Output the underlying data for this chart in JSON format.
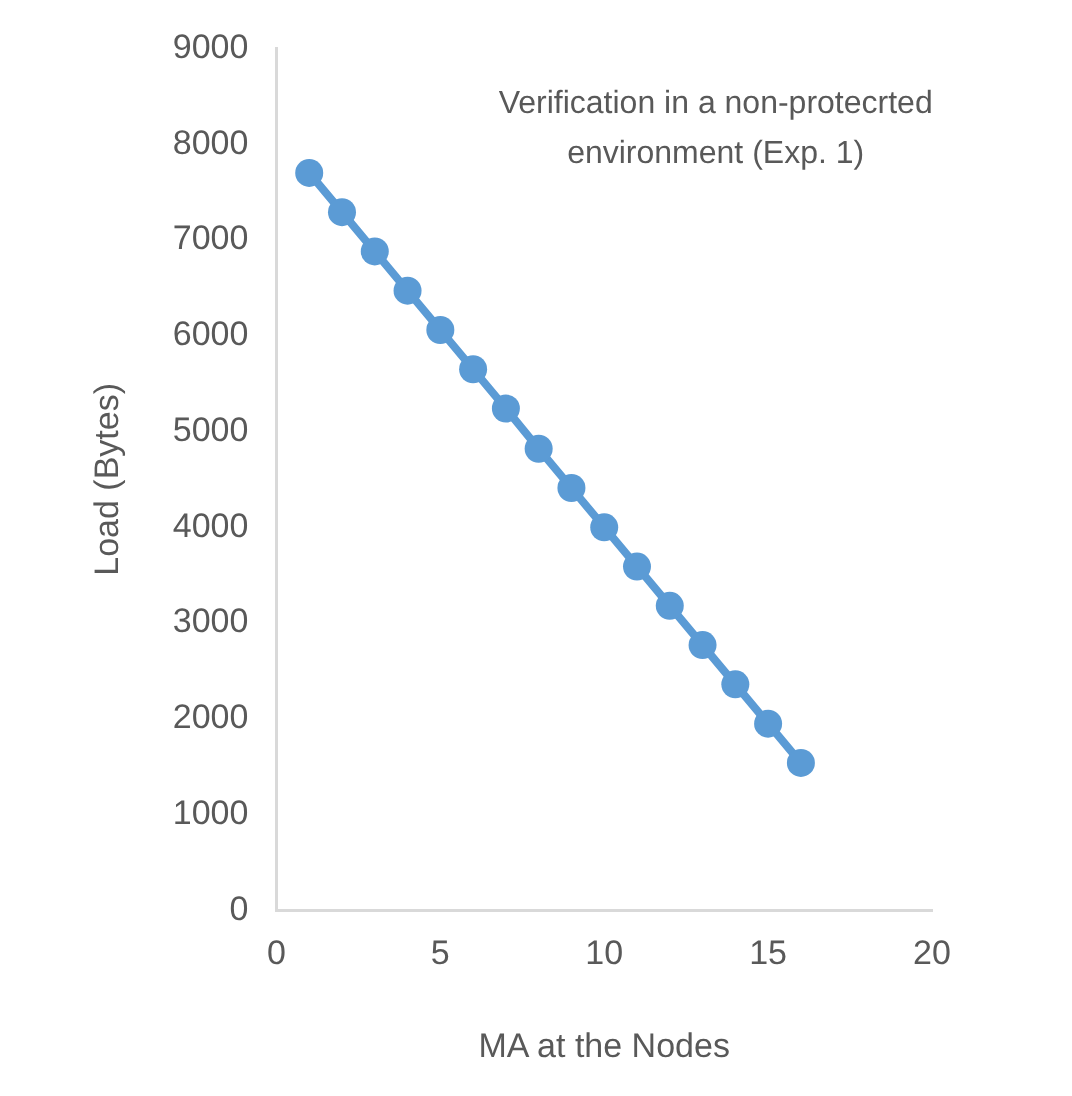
{
  "chart_data": {
    "type": "line",
    "title": "Verification in a non-protecrted environment (Exp. 1)",
    "xlabel": "MA at the Nodes",
    "ylabel": "Load (Bytes)",
    "x": [
      1,
      2,
      3,
      4,
      5,
      6,
      7,
      8,
      9,
      10,
      11,
      12,
      13,
      14,
      15,
      16
    ],
    "series": [
      {
        "color": "#5b9bd5",
        "values": [
          7700,
          7290,
          6880,
          6470,
          6060,
          5650,
          5240,
          4820,
          4410,
          4000,
          3590,
          3180,
          2770,
          2360,
          1950,
          1540
        ]
      }
    ],
    "xlim": [
      0,
      20
    ],
    "xticks": [
      0,
      5,
      10,
      15,
      20
    ],
    "ylim": [
      0,
      9000
    ],
    "yticks": [
      0,
      1000,
      2000,
      3000,
      4000,
      5000,
      6000,
      7000,
      8000,
      9000
    ],
    "grid": false,
    "legend": false,
    "marker": "circle",
    "line_style": "solid"
  }
}
